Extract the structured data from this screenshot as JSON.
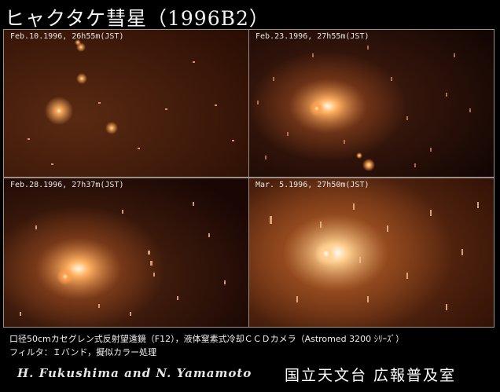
{
  "title": "ヒャクタケ彗星（1996B2）",
  "panels": [
    {
      "label": "Feb.10.1996, 26h55m(JST)"
    },
    {
      "label": "Feb.23.1996, 27h55m(JST)"
    },
    {
      "label": "Feb.28.1996, 27h37m(JST)"
    },
    {
      "label": "Mar. 5.1996, 27h50m(JST)"
    }
  ],
  "caption": {
    "line1": "口径50cmカセグレン式反射望遠鏡（F12），液体窒素式冷却ＣＣＤカメラ（Astromed 3200 ｼﾘｰｽﾞ）",
    "line2": "フィルタ：Ｉバンド，擬似カラー処理"
  },
  "credit": "H. Fukushima  and  N. Yamamoto",
  "organization": "国立天文台 広報普及室"
}
